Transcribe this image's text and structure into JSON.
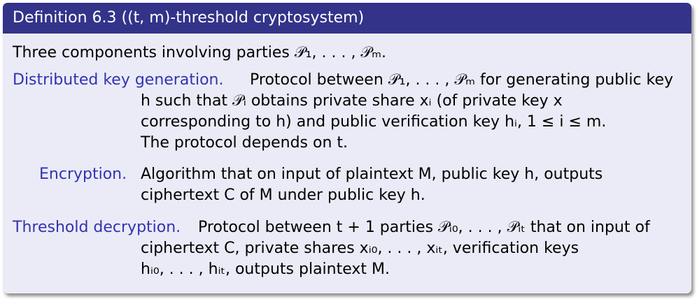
{
  "block": {
    "title": "Definition 6.3 ((t, m)-threshold cryptosystem)",
    "intro": "Three components involving parties 𝒫₁, . . . , 𝒫ₘ.",
    "items": [
      {
        "label": "Distributed key generation.",
        "lines": [
          "Protocol between 𝒫₁, . . . , 𝒫ₘ for generating public key",
          "h such that 𝒫ᵢ obtains private share xᵢ (of private key x",
          "corresponding to h) and public verification key hᵢ, 1 ≤ i ≤ m.",
          "The protocol depends on t."
        ]
      },
      {
        "label": "Encryption.",
        "lines": [
          "Algorithm that on input of plaintext M, public key h, outputs",
          "ciphertext C of M under public key h."
        ]
      },
      {
        "label": "Threshold decryption.",
        "lines": [
          "Protocol between t + 1 parties 𝒫ᵢ₀, . . . , 𝒫ᵢₜ that on input of",
          "ciphertext C, private shares xᵢ₀, . . . , xᵢₜ, verification keys",
          "hᵢ₀, . . . , hᵢₜ, outputs plaintext M."
        ]
      }
    ]
  }
}
